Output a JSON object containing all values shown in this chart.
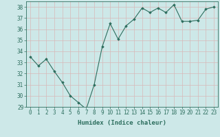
{
  "x": [
    0,
    1,
    2,
    3,
    4,
    5,
    6,
    7,
    8,
    9,
    10,
    11,
    12,
    13,
    14,
    15,
    16,
    17,
    18,
    19,
    20,
    21,
    22,
    23
  ],
  "y": [
    33.5,
    32.7,
    33.3,
    32.2,
    31.2,
    30.0,
    29.4,
    28.8,
    31.0,
    34.4,
    36.5,
    35.1,
    36.3,
    36.9,
    37.9,
    37.5,
    37.9,
    37.5,
    38.2,
    36.7,
    36.7,
    36.8,
    37.8,
    38.0
  ],
  "line_color": "#2d6e5e",
  "marker": "D",
  "marker_size": 1.8,
  "bg_color": "#cde8e8",
  "grid_color": "#b8d8d8",
  "xlabel": "Humidex (Indice chaleur)",
  "ylim": [
    29,
    38.5
  ],
  "xlim": [
    -0.5,
    23.5
  ],
  "yticks": [
    29,
    30,
    31,
    32,
    33,
    34,
    35,
    36,
    37,
    38
  ],
  "xticks": [
    0,
    1,
    2,
    3,
    4,
    5,
    6,
    7,
    8,
    9,
    10,
    11,
    12,
    13,
    14,
    15,
    16,
    17,
    18,
    19,
    20,
    21,
    22,
    23
  ],
  "tick_color": "#2d6e5e",
  "label_fontsize": 6.5,
  "tick_fontsize": 5.5
}
